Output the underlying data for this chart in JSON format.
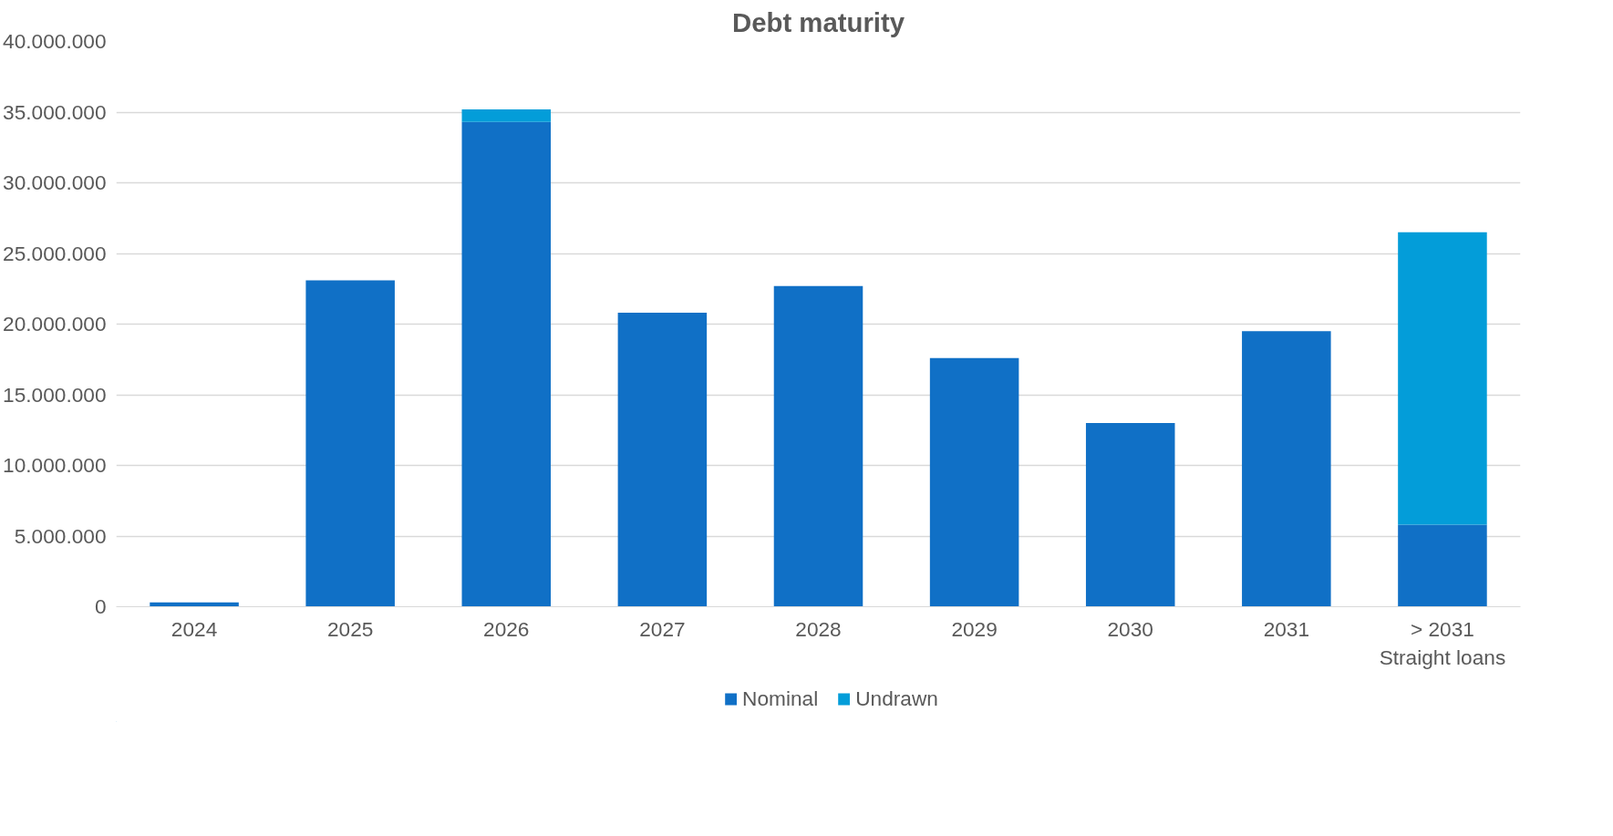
{
  "chart_data": {
    "type": "bar",
    "title": "Debt maturity",
    "categories": [
      "2024",
      "2025",
      "2026",
      "2027",
      "2028",
      "2029",
      "2030",
      "2031",
      "> 2031\nStraight loans"
    ],
    "series": [
      {
        "name": "Nominal",
        "color": "#1070c6",
        "values": [
          300000,
          23100000,
          34300000,
          20800000,
          22700000,
          17600000,
          13000000,
          19500000,
          5800000
        ]
      },
      {
        "name": "Undrawn",
        "color": "#039dd9",
        "values": [
          0,
          0,
          900000,
          0,
          0,
          0,
          0,
          0,
          20700000
        ]
      }
    ],
    "stacked": true,
    "ylim": [
      0,
      40000000
    ],
    "yticks": [
      {
        "value": 0,
        "label": "0"
      },
      {
        "value": 5000000,
        "label": "5.000.000"
      },
      {
        "value": 10000000,
        "label": "10.000.000"
      },
      {
        "value": 15000000,
        "label": "15.000.000"
      },
      {
        "value": 20000000,
        "label": "20.000.000"
      },
      {
        "value": 25000000,
        "label": "25.000.000"
      },
      {
        "value": 30000000,
        "label": "30.000.000"
      },
      {
        "value": 35000000,
        "label": "35.000.000"
      },
      {
        "value": 40000000,
        "label": "40.000.000"
      }
    ],
    "grid": "y",
    "legend": "bottom"
  }
}
